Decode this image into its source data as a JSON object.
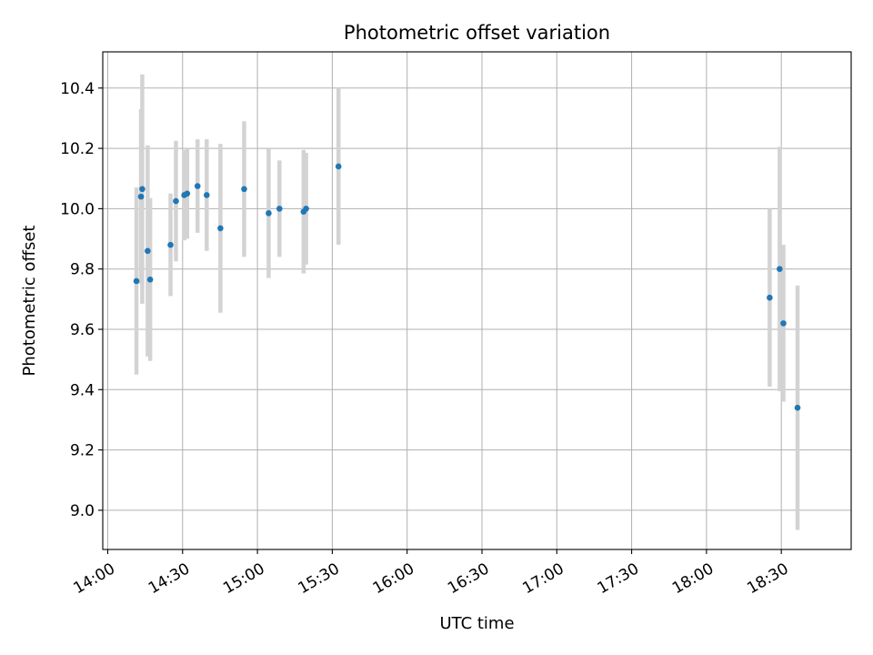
{
  "chart_data": {
    "type": "scatter",
    "title": "Photometric offset variation",
    "xlabel": "UTC time",
    "ylabel": "Photometric offset",
    "xlim": [
      "13:58",
      "18:58"
    ],
    "ylim": [
      8.87,
      10.52
    ],
    "x_ticks": [
      "14:00",
      "14:30",
      "15:00",
      "15:30",
      "16:00",
      "16:30",
      "17:00",
      "17:30",
      "18:00",
      "18:30"
    ],
    "y_ticks": [
      "9.0",
      "9.2",
      "9.4",
      "9.6",
      "9.8",
      "10.0",
      "10.2",
      "10.4"
    ],
    "grid": true,
    "marker_color": "#1f77b4",
    "errorbar_color": "#d3d3d3",
    "points": [
      {
        "t": "14:11:30",
        "y": 9.76,
        "err": 0.31
      },
      {
        "t": "14:13:20",
        "y": 10.04,
        "err": 0.29
      },
      {
        "t": "14:13:50",
        "y": 10.065,
        "err": 0.38
      },
      {
        "t": "14:16:00",
        "y": 9.86,
        "err": 0.35
      },
      {
        "t": "14:17:00",
        "y": 9.765,
        "err": 0.27
      },
      {
        "t": "14:25:10",
        "y": 9.88,
        "err": 0.17
      },
      {
        "t": "14:27:20",
        "y": 10.025,
        "err": 0.2
      },
      {
        "t": "14:30:40",
        "y": 10.045,
        "err": 0.15
      },
      {
        "t": "14:31:50",
        "y": 10.05,
        "err": 0.15
      },
      {
        "t": "14:36:00",
        "y": 10.075,
        "err": 0.155
      },
      {
        "t": "14:39:40",
        "y": 10.045,
        "err": 0.185
      },
      {
        "t": "14:45:10",
        "y": 9.935,
        "err": 0.28
      },
      {
        "t": "14:54:40",
        "y": 10.065,
        "err": 0.225
      },
      {
        "t": "15:04:30",
        "y": 9.985,
        "err": 0.215
      },
      {
        "t": "15:08:50",
        "y": 10.0,
        "err": 0.16
      },
      {
        "t": "15:18:30",
        "y": 9.99,
        "err": 0.205
      },
      {
        "t": "15:19:30",
        "y": 10.0,
        "err": 0.185
      },
      {
        "t": "15:32:30",
        "y": 10.14,
        "err": 0.26
      },
      {
        "t": "18:25:20",
        "y": 9.705,
        "err": 0.295
      },
      {
        "t": "18:29:20",
        "y": 9.8,
        "err": 0.405
      },
      {
        "t": "18:30:50",
        "y": 9.62,
        "err": 0.26
      },
      {
        "t": "18:36:30",
        "y": 9.34,
        "err": 0.405
      }
    ]
  }
}
